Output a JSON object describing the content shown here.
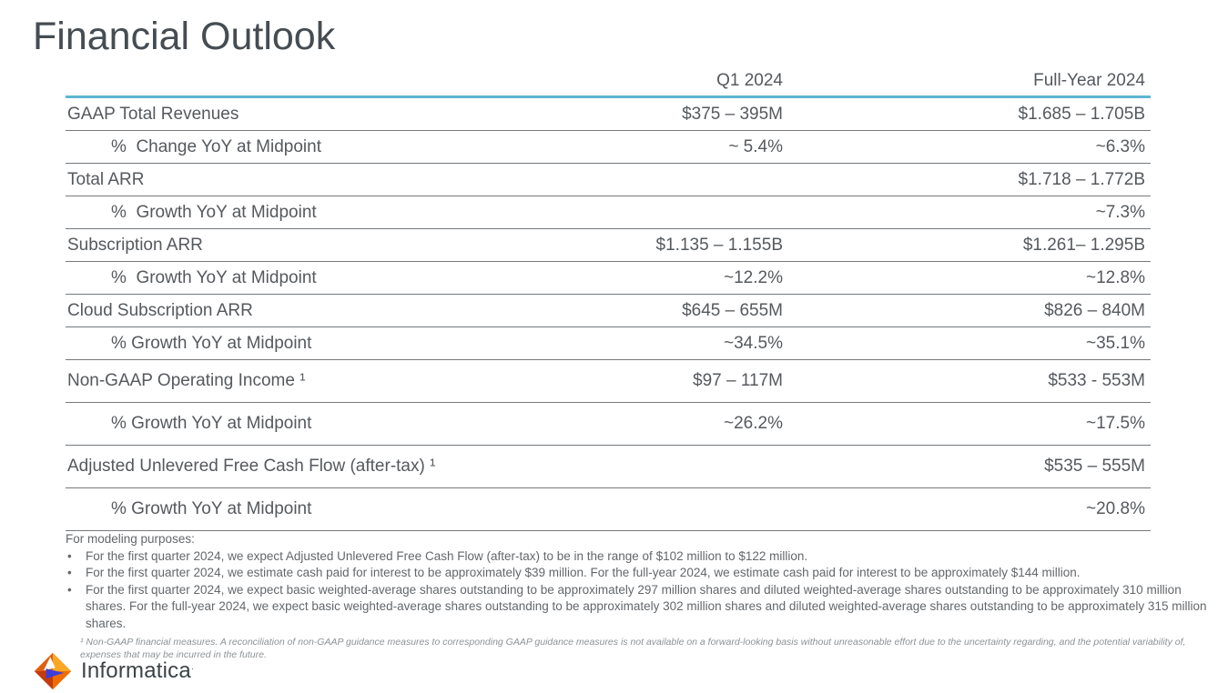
{
  "title": "Financial Outlook",
  "table": {
    "col_headers": [
      "Q1 2024",
      "Full-Year 2024"
    ],
    "rows": [
      {
        "label": "GAAP Total Revenues",
        "q1": "$375 – 395M",
        "fy": "$1.685 – 1.705B",
        "indent": false,
        "tall": false
      },
      {
        "label": "%  Change YoY at Midpoint",
        "q1": "~ 5.4%",
        "fy": "~6.3%",
        "indent": true,
        "tall": false
      },
      {
        "label": "Total ARR",
        "q1": "",
        "fy": "$1.718 – 1.772B",
        "indent": false,
        "tall": false
      },
      {
        "label": "%  Growth YoY at Midpoint",
        "q1": "",
        "fy": "~7.3%",
        "indent": true,
        "tall": false
      },
      {
        "label": "Subscription ARR",
        "q1": "$1.135 – 1.155B",
        "fy": "$1.261– 1.295B",
        "indent": false,
        "tall": false
      },
      {
        "label": "%  Growth YoY at Midpoint",
        "q1": "~12.2%",
        "fy": "~12.8%",
        "indent": true,
        "tall": false
      },
      {
        "label": "Cloud Subscription ARR",
        "q1": "$645 – 655M",
        "fy": "$826 – 840M",
        "indent": false,
        "tall": false
      },
      {
        "label": "% Growth YoY at Midpoint",
        "q1": "~34.5%",
        "fy": "~35.1%",
        "indent": true,
        "tall": false
      },
      {
        "label": "Non-GAAP Operating Income ¹",
        "q1": "$97 – 117M",
        "fy": "$533 - 553M",
        "indent": false,
        "tall": true
      },
      {
        "label": "% Growth YoY at Midpoint",
        "q1": "~26.2%",
        "fy": "~17.5%",
        "indent": true,
        "tall": true
      },
      {
        "label": "Adjusted Unlevered Free Cash Flow (after-tax) ¹",
        "q1": "",
        "fy": "$535 – 555M",
        "indent": false,
        "tall": true
      },
      {
        "label": "% Growth YoY at Midpoint",
        "q1": "",
        "fy": "~20.8%",
        "indent": true,
        "tall": true
      }
    ]
  },
  "footnotes": {
    "heading": "For modeling purposes:",
    "bullet_glyph": "•",
    "bullets": [
      "For the first quarter 2024, we expect Adjusted Unlevered Free Cash Flow (after-tax) to be in the range of $102 million to $122 million.",
      "For the first quarter 2024, we estimate cash paid for interest to be approximately $39 million. For the full-year 2024, we estimate cash paid for interest to be approximately $144 million.",
      "For the first quarter 2024, we expect basic weighted-average shares outstanding to be approximately 297  million shares and diluted weighted-average shares outstanding to be approximately 310 million shares. For the full-year 2024, we expect basic weighted-average shares outstanding to be approximately 302 million shares and diluted weighted-average shares outstanding to be approximately 315 million shares."
    ],
    "disclaimer": "¹ Non-GAAP financial measures. A reconciliation of non-GAAP guidance measures to corresponding GAAP guidance measures is not available on a forward-looking basis without unreasonable effort due to the uncertainty regarding, and the potential variability of, expenses that may be incurred in the future."
  },
  "logo": {
    "text": "Informatica",
    "mark": "·"
  },
  "colors": {
    "accent_teal": "#5fb6d2",
    "row_border": "#75797d",
    "title_text": "#454c52",
    "body_text": "#55595e",
    "footnote_text": "#63676b",
    "disclaimer_text": "#8d9296",
    "logo_orange": "#f08a1e",
    "logo_dark_orange": "#e06010",
    "logo_red_orange": "#c33b0e",
    "logo_light_orange": "#f9a825",
    "logo_blue": "#3b3ed9"
  }
}
